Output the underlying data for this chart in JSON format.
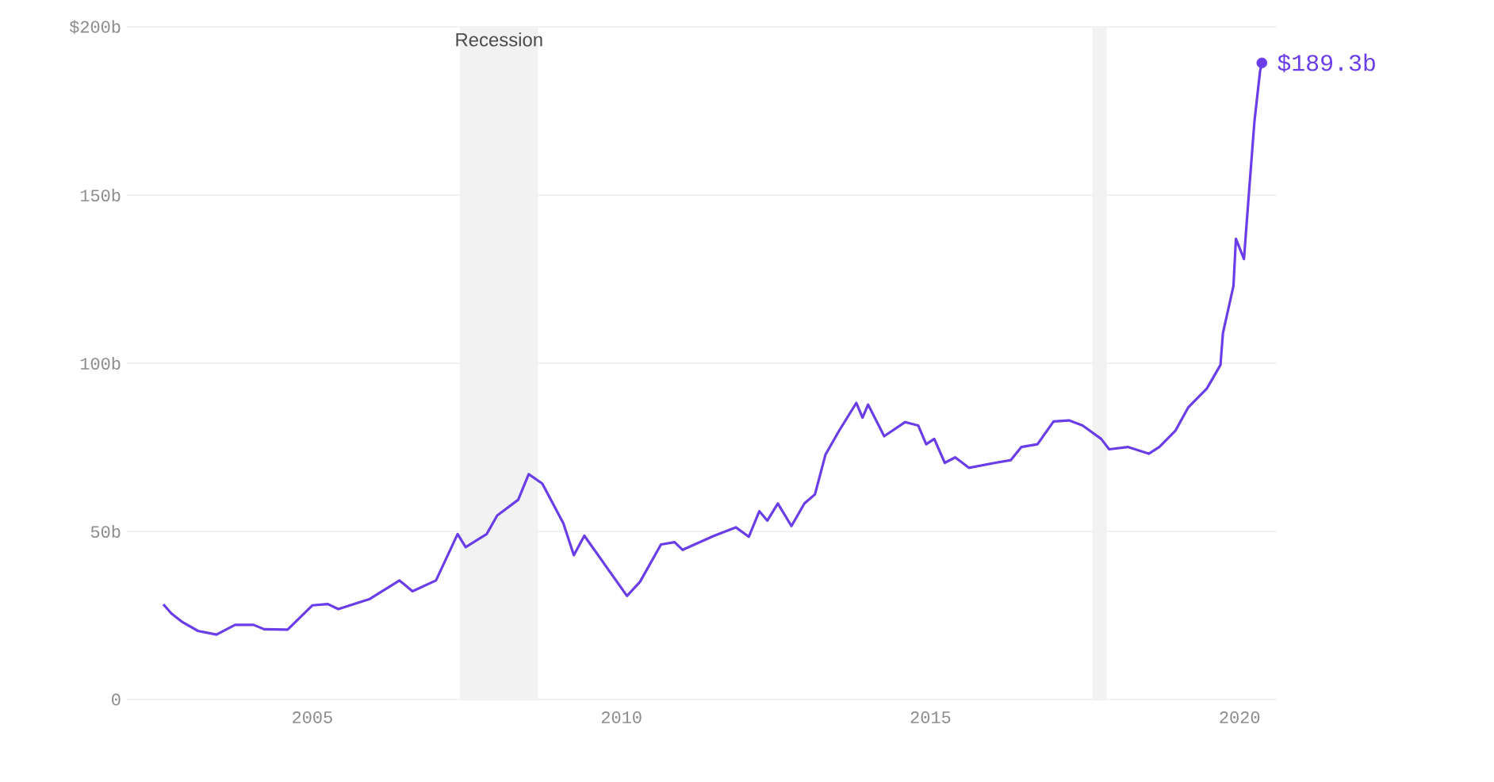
{
  "chart_data": {
    "type": "line",
    "x": [
      2002.59,
      2002.72,
      2002.9,
      2003.15,
      2003.45,
      2003.75,
      2004.05,
      2004.22,
      2004.6,
      2005.0,
      2005.25,
      2005.42,
      2005.93,
      2006.41,
      2006.62,
      2007.0,
      2007.35,
      2007.48,
      2007.82,
      2007.99,
      2008.33,
      2008.5,
      2008.72,
      2009.06,
      2009.23,
      2009.4,
      2010.09,
      2010.3,
      2010.64,
      2010.86,
      2010.99,
      2011.5,
      2011.85,
      2012.06,
      2012.23,
      2012.36,
      2012.53,
      2012.75,
      2012.96,
      2013.13,
      2013.3,
      2013.52,
      2013.8,
      2013.9,
      2013.99,
      2014.25,
      2014.59,
      2014.8,
      2014.93,
      2015.06,
      2015.23,
      2015.4,
      2015.62,
      2016.05,
      2016.3,
      2016.47,
      2016.73,
      2016.99,
      2017.24,
      2017.46,
      2017.76,
      2017.89,
      2018.19,
      2018.53,
      2018.7,
      2018.96,
      2019.17,
      2019.47,
      2019.69,
      2019.73,
      2019.9,
      2019.94,
      2020.07,
      2020.16,
      2020.24,
      2020.33,
      2020.36
    ],
    "series": [
      {
        "color": "#6a3de8",
        "values": [
          28.3,
          25.6,
          23,
          20.4,
          19.3,
          22.2,
          22.2,
          20.9,
          20.8,
          28,
          28.4,
          26.9,
          29.9,
          35.4,
          32.2,
          35.4,
          49.2,
          45.3,
          49.2,
          54.7,
          59.4,
          67,
          64.2,
          52.4,
          42.9,
          48.7,
          30.8,
          35,
          46.1,
          46.8,
          44.5,
          48.7,
          51.2,
          48.4,
          56,
          53.2,
          58.3,
          51.6,
          58.3,
          61,
          72.8,
          79.9,
          88.2,
          83.8,
          87.7,
          78.3,
          82.5,
          81.5,
          75.9,
          77.5,
          70.4,
          72,
          68.9,
          70.4,
          71.2,
          75.1,
          75.9,
          82.7,
          83,
          81.5,
          77.5,
          74.4,
          75.1,
          73.1,
          75.1,
          79.9,
          86.9,
          92.5,
          99.5,
          109,
          123,
          137,
          131,
          153,
          172,
          186.8,
          189.3
        ]
      }
    ],
    "xlim": [
      2002,
      2020.6
    ],
    "ylim": [
      0,
      200
    ],
    "xticks": [
      2005,
      2010,
      2015,
      2020
    ],
    "yticks": [
      0,
      {
        "value": 50,
        "label": "50b"
      },
      {
        "value": 100,
        "label": "100b"
      },
      {
        "value": 150,
        "label": "150b"
      },
      {
        "value": 200,
        "label": "$200b"
      }
    ],
    "grid": "y",
    "bands": [
      {
        "axis": "x",
        "from": 2007.39,
        "to": 2008.65,
        "label": "Recession",
        "color": "#f2f2f2"
      },
      {
        "axis": "x",
        "from": 2017.62,
        "to": 2017.85,
        "color": "#f2f2f2"
      }
    ],
    "annotations": [
      {
        "text": "$189.3b",
        "x": 2020.36,
        "y": 189.3
      }
    ]
  }
}
